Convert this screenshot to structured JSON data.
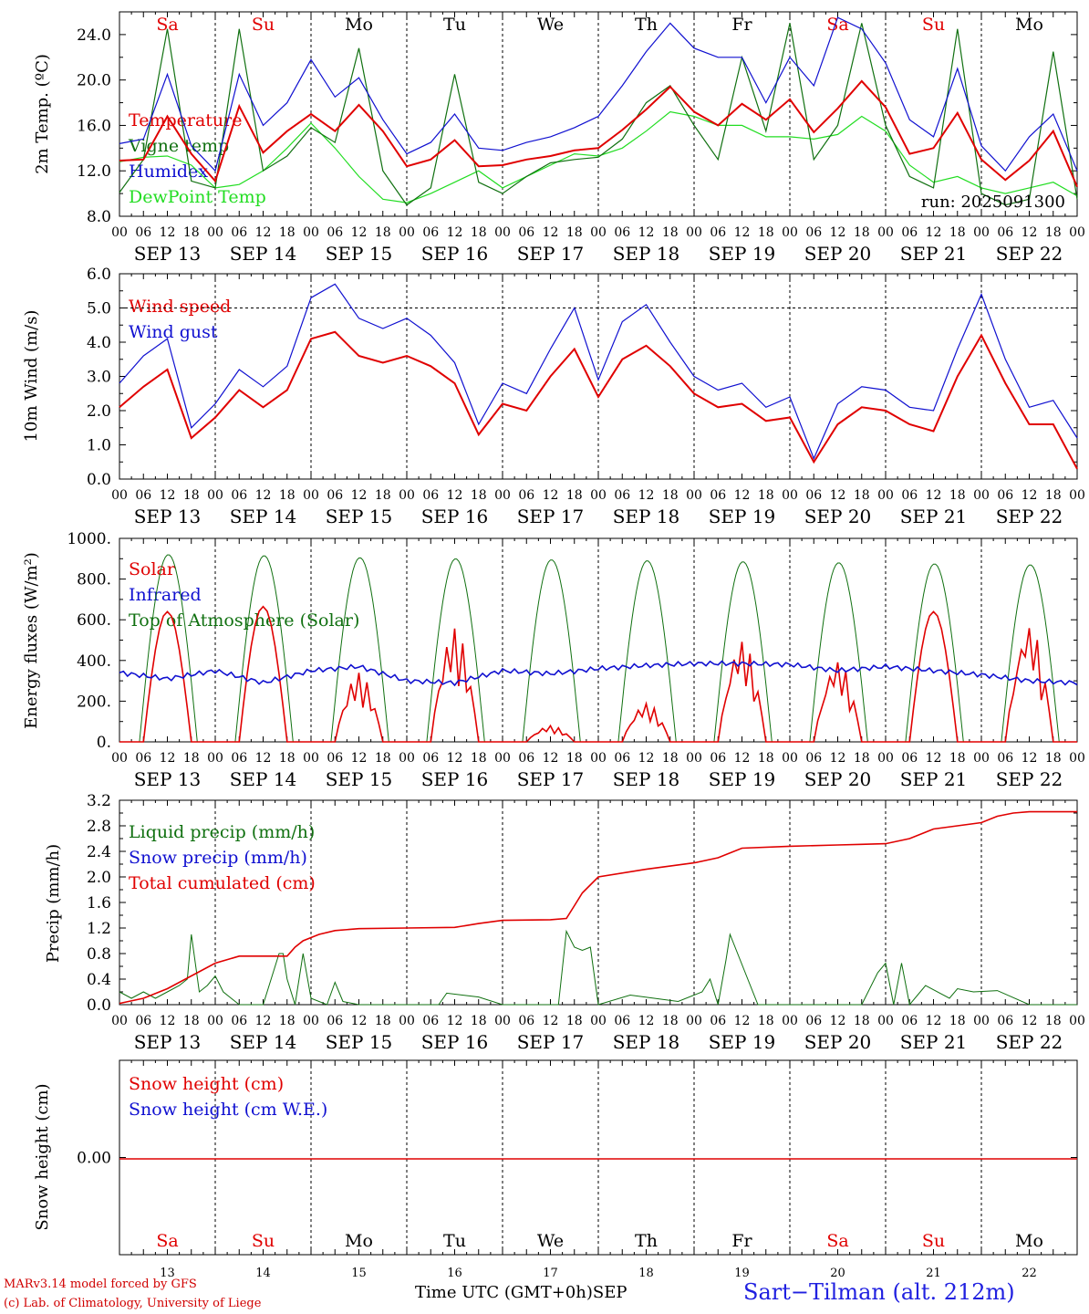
{
  "run_label": "run: 2025091300",
  "x_unit_label": "Time UTC (GMT+0h)",
  "month_label": "SEP",
  "footer": {
    "credit_line1": "MARv3.14 model forced by GFS",
    "credit_line2": "(c) Lab. of Climatology, University of Liege",
    "location": "Sart−Tilman (alt. 212m)"
  },
  "colors": {
    "red": "#e00000",
    "green": "#107010",
    "blue": "#1010d0",
    "light_green": "#22dd22",
    "axis": "#000000"
  },
  "days": [
    {
      "abbr": "Sa",
      "weekend": true,
      "date": "SEP 13",
      "num": "13"
    },
    {
      "abbr": "Su",
      "weekend": true,
      "date": "SEP 14",
      "num": "14"
    },
    {
      "abbr": "Mo",
      "weekend": false,
      "date": "SEP 15",
      "num": "15"
    },
    {
      "abbr": "Tu",
      "weekend": false,
      "date": "SEP 16",
      "num": "16"
    },
    {
      "abbr": "We",
      "weekend": false,
      "date": "SEP 17",
      "num": "17"
    },
    {
      "abbr": "Th",
      "weekend": false,
      "date": "SEP 18",
      "num": "18"
    },
    {
      "abbr": "Fr",
      "weekend": false,
      "date": "SEP 19",
      "num": "19"
    },
    {
      "abbr": "Sa",
      "weekend": true,
      "date": "SEP 20",
      "num": "20"
    },
    {
      "abbr": "Su",
      "weekend": true,
      "date": "SEP 21",
      "num": "21"
    },
    {
      "abbr": "Mo",
      "weekend": false,
      "date": "SEP 22",
      "num": "22"
    }
  ],
  "hour_ticks": [
    "00",
    "06",
    "12",
    "18"
  ],
  "chart_data": [
    {
      "type": "line",
      "ylabel": "2m Temp. (ºC)",
      "ylim": [
        8,
        26
      ],
      "yticks": [
        "8.0",
        "12.0",
        "16.0",
        "20.0",
        "24.0"
      ],
      "yticks_values": [
        8,
        12,
        16,
        20,
        24
      ],
      "x_hours": [
        0,
        6,
        12,
        18,
        24,
        30,
        36,
        42,
        48,
        54,
        60,
        66,
        72,
        78,
        84,
        90,
        96,
        102,
        108,
        114,
        120,
        126,
        132,
        138,
        144,
        150,
        156,
        162,
        168,
        174,
        180,
        186,
        192,
        198,
        204,
        210,
        216,
        222,
        228,
        234,
        240
      ],
      "series": [
        {
          "name": "Temperature",
          "color": "red",
          "values": [
            12.9,
            13.0,
            16.8,
            13.5,
            11.1,
            17.7,
            13.6,
            15.5,
            17.0,
            15.5,
            17.8,
            15.5,
            12.4,
            13.0,
            14.7,
            12.4,
            12.5,
            13.0,
            13.3,
            13.8,
            14.0,
            15.6,
            17.4,
            19.4,
            17.2,
            16.0,
            17.9,
            16.5,
            18.3,
            15.4,
            17.5,
            19.9,
            17.6,
            13.5,
            14.0,
            17.1,
            13.0,
            11.2,
            12.9,
            15.5,
            10.6
          ]
        },
        {
          "name": "Vigne temp",
          "color": "green",
          "values": [
            10.1,
            13.0,
            24.5,
            11.1,
            10.5,
            24.5,
            12.0,
            13.3,
            15.8,
            14.5,
            22.8,
            12.0,
            9.0,
            10.5,
            20.5,
            11.0,
            10.0,
            11.5,
            12.7,
            13.0,
            13.2,
            14.8,
            18.0,
            19.5,
            16.0,
            13.0,
            22.0,
            15.5,
            25.0,
            13.0,
            16.0,
            25.0,
            16.0,
            11.5,
            10.5,
            24.5,
            10.0,
            9.0,
            9.5,
            22.5,
            9.5
          ]
        },
        {
          "name": "Humidex",
          "color": "blue",
          "values": [
            14.4,
            14.8,
            20.5,
            14.2,
            12.0,
            20.5,
            16.0,
            18.0,
            21.8,
            18.5,
            20.2,
            16.5,
            13.5,
            14.5,
            17.0,
            14.0,
            13.8,
            14.5,
            15.0,
            15.8,
            16.8,
            19.5,
            22.5,
            25.0,
            22.8,
            22.0,
            22.0,
            18.0,
            22.0,
            19.5,
            25.5,
            24.5,
            21.5,
            16.5,
            15.0,
            21.0,
            14.2,
            12.0,
            15.0,
            17.0,
            12.0
          ]
        },
        {
          "name": "DewPoint Temp",
          "color": "light_green",
          "values": [
            12.8,
            13.2,
            13.3,
            12.5,
            10.5,
            10.8,
            12.0,
            14.0,
            16.2,
            14.0,
            11.5,
            9.5,
            9.2,
            10.0,
            11.0,
            12.0,
            10.5,
            11.5,
            12.5,
            13.5,
            13.3,
            14.0,
            15.5,
            17.2,
            16.8,
            16.0,
            16.0,
            15.0,
            15.0,
            14.8,
            15.2,
            16.8,
            15.5,
            12.5,
            11.0,
            11.5,
            10.5,
            10.0,
            10.5,
            11.0,
            9.8
          ]
        }
      ]
    },
    {
      "type": "line",
      "ylabel": "10m Wind (m/s)",
      "ylim": [
        0,
        6
      ],
      "yticks": [
        "0.0",
        "1.0",
        "2.0",
        "3.0",
        "4.0",
        "5.0",
        "6.0"
      ],
      "yticks_values": [
        0,
        1,
        2,
        3,
        4,
        5,
        6
      ],
      "reference_line": 5,
      "x_hours": [
        0,
        6,
        12,
        18,
        24,
        30,
        36,
        42,
        48,
        54,
        60,
        66,
        72,
        78,
        84,
        90,
        96,
        102,
        108,
        114,
        120,
        126,
        132,
        138,
        144,
        150,
        156,
        162,
        168,
        174,
        180,
        186,
        192,
        198,
        204,
        210,
        216,
        222,
        228,
        234,
        240
      ],
      "series": [
        {
          "name": "Wind speed",
          "color": "red",
          "values": [
            2.1,
            2.7,
            3.2,
            1.2,
            1.8,
            2.6,
            2.1,
            2.6,
            4.1,
            4.3,
            3.6,
            3.4,
            3.6,
            3.3,
            2.8,
            1.3,
            2.2,
            2.0,
            3.0,
            3.8,
            2.4,
            3.5,
            3.9,
            3.3,
            2.5,
            2.1,
            2.2,
            1.7,
            1.8,
            0.5,
            1.6,
            2.1,
            2.0,
            1.6,
            1.4,
            3.0,
            4.2,
            2.8,
            1.6,
            1.6,
            0.3
          ]
        },
        {
          "name": "Wind gust",
          "color": "blue",
          "values": [
            2.8,
            3.6,
            4.1,
            1.5,
            2.2,
            3.2,
            2.7,
            3.3,
            5.3,
            5.7,
            4.7,
            4.4,
            4.7,
            4.2,
            3.4,
            1.6,
            2.8,
            2.5,
            3.8,
            5.0,
            2.9,
            4.6,
            5.1,
            4.0,
            3.0,
            2.6,
            2.8,
            2.1,
            2.4,
            0.6,
            2.2,
            2.7,
            2.6,
            2.1,
            2.0,
            3.8,
            5.4,
            3.5,
            2.1,
            2.3,
            1.2
          ]
        }
      ]
    },
    {
      "type": "line",
      "ylabel": "Energy fluxes (W/m²)",
      "ylim": [
        0,
        1000
      ],
      "yticks": [
        "0.",
        "200.",
        "400.",
        "600.",
        "800.",
        "1000."
      ],
      "yticks_values": [
        0,
        200,
        400,
        600,
        800,
        1000
      ],
      "toa_peaks": [
        920,
        915,
        905,
        900,
        895,
        890,
        885,
        880,
        875,
        870
      ],
      "solar_peaks": [
        640,
        665,
        340,
        560,
        80,
        190,
        500,
        400,
        640,
        580
      ],
      "infrared_hourly_points": {
        "hours": [
          0,
          12,
          24,
          36,
          48,
          60,
          72,
          84,
          96,
          108,
          120,
          132,
          144,
          156,
          168,
          180,
          192,
          204,
          216,
          228,
          240
        ],
        "values": [
          340,
          310,
          350,
          290,
          350,
          370,
          300,
          290,
          350,
          335,
          360,
          375,
          385,
          385,
          380,
          350,
          370,
          350,
          330,
          300,
          290
        ]
      },
      "series": [
        {
          "name": "Solar",
          "color": "red"
        },
        {
          "name": "Infrared",
          "color": "blue"
        },
        {
          "name": "Top of Atmosphere (Solar)",
          "color": "green"
        }
      ]
    },
    {
      "type": "line",
      "ylabel": "Precip (mm/h)",
      "ylim": [
        0,
        3.2
      ],
      "yticks": [
        "0.0",
        "0.4",
        "0.8",
        "1.2",
        "1.6",
        "2.0",
        "2.4",
        "2.8",
        "3.2"
      ],
      "yticks_values": [
        0,
        0.4,
        0.8,
        1.2,
        1.6,
        2.0,
        2.4,
        2.8,
        3.2
      ],
      "series": [
        {
          "name": "Liquid precip (mm/h)",
          "color": "green",
          "hours": [
            0,
            3,
            6,
            9,
            12,
            15,
            17,
            18,
            20,
            22,
            24,
            26,
            28,
            30,
            36,
            40,
            41,
            42,
            44,
            46,
            48,
            52,
            54,
            56,
            60,
            66,
            80,
            82,
            90,
            96,
            110,
            112,
            114,
            116,
            118,
            120,
            128,
            134,
            140,
            146,
            148,
            150,
            152,
            153,
            160,
            186,
            190,
            192,
            194,
            196,
            198,
            202,
            208,
            210,
            214,
            220,
            228,
            240
          ],
          "values": [
            0.2,
            0.1,
            0.2,
            0.1,
            0.2,
            0.3,
            0.4,
            1.1,
            0.2,
            0.3,
            0.45,
            0.2,
            0.1,
            0.0,
            0.0,
            0.8,
            0.8,
            0.4,
            0.0,
            0.8,
            0.1,
            0.0,
            0.35,
            0.05,
            0.0,
            0.0,
            0.0,
            0.18,
            0.12,
            0.0,
            0.0,
            1.15,
            0.9,
            0.85,
            0.9,
            0.0,
            0.15,
            0.1,
            0.05,
            0.2,
            0.4,
            0.0,
            0.7,
            1.1,
            0.0,
            0.0,
            0.5,
            0.65,
            0.0,
            0.65,
            0.0,
            0.3,
            0.1,
            0.25,
            0.2,
            0.22,
            0.0,
            0.0
          ]
        },
        {
          "name": "Snow precip (mm/h)",
          "color": "blue"
        },
        {
          "name": "Total cumulated (cm)",
          "color": "red",
          "hours": [
            0,
            6,
            12,
            18,
            24,
            30,
            36,
            42,
            44,
            46,
            48,
            50,
            54,
            60,
            72,
            84,
            90,
            96,
            108,
            112,
            114,
            116,
            120,
            132,
            144,
            150,
            152,
            156,
            168,
            180,
            186,
            192,
            198,
            204,
            216,
            220,
            224,
            228,
            240
          ],
          "values": [
            0.02,
            0.1,
            0.25,
            0.45,
            0.65,
            0.76,
            0.76,
            0.76,
            0.9,
            1.0,
            1.05,
            1.1,
            1.16,
            1.19,
            1.2,
            1.21,
            1.27,
            1.32,
            1.33,
            1.35,
            1.55,
            1.75,
            2.0,
            2.12,
            2.22,
            2.3,
            2.35,
            2.45,
            2.48,
            2.5,
            2.51,
            2.52,
            2.6,
            2.75,
            2.85,
            2.95,
            3.0,
            3.02,
            3.02
          ]
        }
      ]
    },
    {
      "type": "line",
      "ylabel": "Snow height (cm)",
      "yticks": [
        "0.00"
      ],
      "yticks_values": [
        0
      ],
      "series": [
        {
          "name": "Snow height (cm)",
          "color": "red",
          "values": [
            0
          ]
        },
        {
          "name": "Snow height (cm W.E.)",
          "color": "blue",
          "values": [
            0
          ]
        }
      ]
    }
  ]
}
